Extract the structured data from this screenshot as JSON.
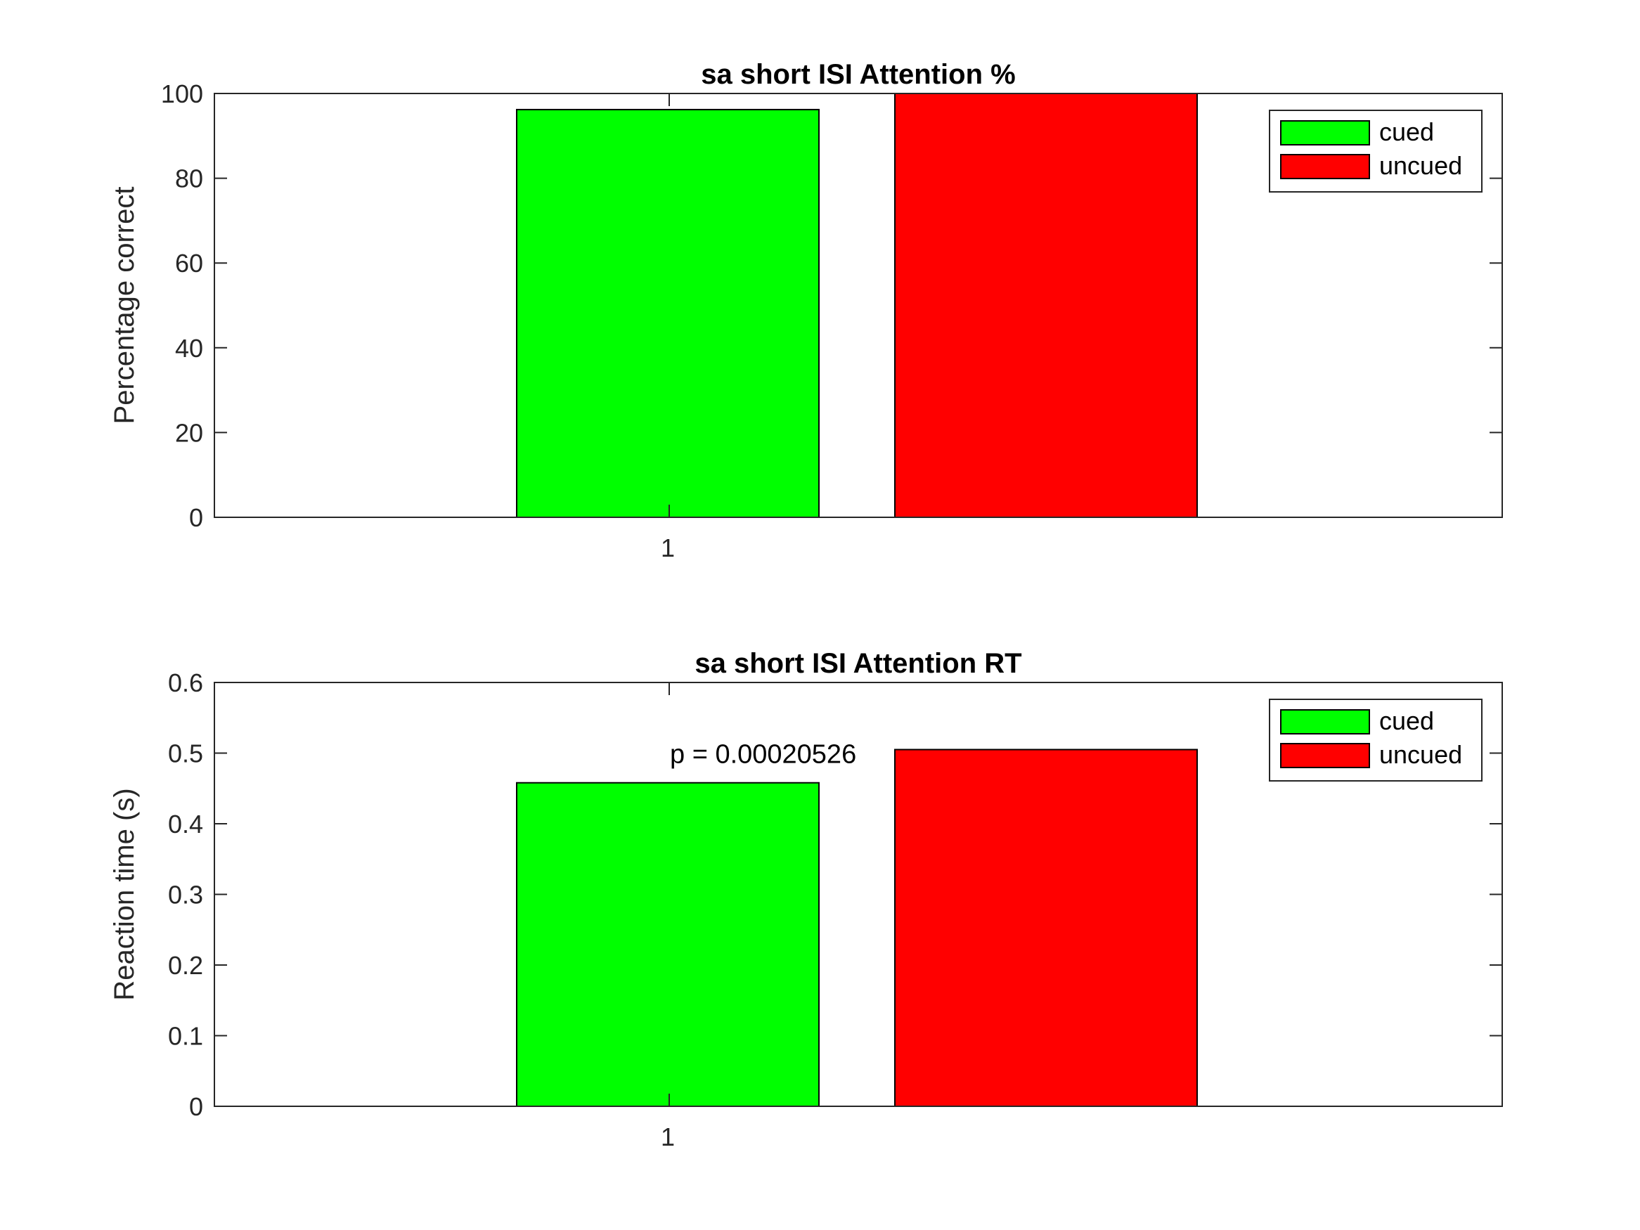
{
  "chart_data": [
    {
      "type": "bar",
      "title": "sa short ISI Attention %",
      "xlabel": "",
      "ylabel": "Percentage correct",
      "categories": [
        "1"
      ],
      "series": [
        {
          "name": "cued",
          "values": [
            96.2
          ],
          "color": "#00ff00"
        },
        {
          "name": "uncued",
          "values": [
            100
          ],
          "color": "#ff0000"
        }
      ],
      "ylim": [
        0,
        100
      ],
      "yticks": [
        "0",
        "20",
        "40",
        "60",
        "80",
        "100"
      ],
      "legend": {
        "position": "top-right",
        "entries": [
          "cued",
          "uncued"
        ]
      },
      "grid": false
    },
    {
      "type": "bar",
      "title": "sa short ISI Attention RT",
      "xlabel": "",
      "ylabel": "Reaction time (s)",
      "categories": [
        "1"
      ],
      "series": [
        {
          "name": "cued",
          "values": [
            0.458
          ],
          "color": "#00ff00"
        },
        {
          "name": "uncued",
          "values": [
            0.505
          ],
          "color": "#ff0000"
        }
      ],
      "ylim": [
        0,
        0.6
      ],
      "yticks": [
        "0",
        "0.1",
        "0.2",
        "0.3",
        "0.4",
        "0.5",
        "0.6"
      ],
      "annotation": "p = 0.00020526",
      "legend": {
        "position": "top-right",
        "entries": [
          "cued",
          "uncued"
        ]
      },
      "grid": false
    }
  ]
}
